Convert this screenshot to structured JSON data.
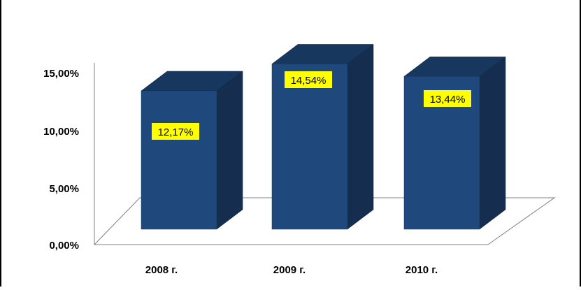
{
  "chart_data": {
    "type": "bar",
    "categories": [
      "2008 г.",
      "2009 г.",
      "2010 г."
    ],
    "values": [
      12.17,
      14.54,
      13.44
    ],
    "value_labels": [
      "12,17%",
      "14,54%",
      "13,44%"
    ],
    "y_ticks": [
      0,
      5,
      10,
      15
    ],
    "y_tick_labels": [
      "0,00%",
      "5,00%",
      "10,00%",
      "15,00%"
    ],
    "ylim": [
      0,
      15
    ],
    "style": "3d-column",
    "grid": false,
    "legend": "none",
    "colors": {
      "bar_front": "#1f497d",
      "bar_side": "#152d4f",
      "bar_top": "#17375e",
      "label_bg": "#ffff00",
      "frame": "#000000",
      "floor": "#808080"
    }
  }
}
